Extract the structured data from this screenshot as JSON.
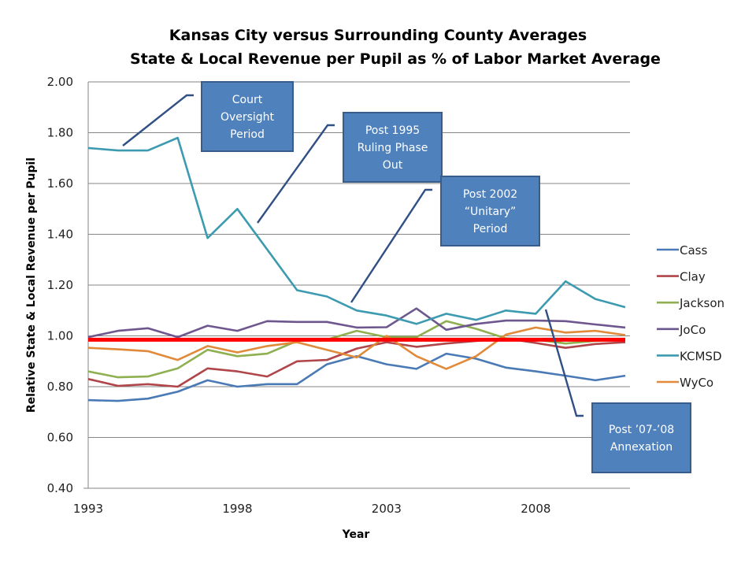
{
  "chart_data": {
    "type": "line",
    "title": "Kansas City versus Surrounding County Averages",
    "subtitle": "State & Local Revenue per Pupil as % of Labor Market Average",
    "xlabel": "Year",
    "ylabel": "Relative State & Local Revenue per Pupil",
    "ylim": [
      0.4,
      2.0
    ],
    "yticks": [
      "0.40",
      "0.60",
      "0.80",
      "1.00",
      "1.20",
      "1.40",
      "1.60",
      "1.80",
      "2.00"
    ],
    "ytick_values": [
      0.4,
      0.6,
      0.8,
      1.0,
      1.2,
      1.4,
      1.6,
      1.8,
      2.0
    ],
    "xticks": [
      "1993",
      "1998",
      "2003",
      "2008"
    ],
    "xtick_values": [
      1993,
      1998,
      2003,
      2008
    ],
    "xlim": [
      1993,
      2011
    ],
    "grid": "horizontal",
    "legend_position": "right",
    "x": [
      1993,
      1994,
      1995,
      1996,
      1997,
      1998,
      1999,
      2000,
      2001,
      2002,
      2003,
      2004,
      2005,
      2006,
      2007,
      2008,
      2009,
      2010,
      2011
    ],
    "series": [
      {
        "name": "Cass",
        "color": "#4a7ab5",
        "values": [
          0.747,
          0.744,
          0.753,
          0.78,
          0.825,
          0.8,
          0.81,
          0.81,
          0.888,
          0.92,
          0.888,
          0.87,
          0.93,
          0.91,
          0.875,
          0.86,
          0.843,
          0.825,
          0.843
        ]
      },
      {
        "name": "Clay",
        "color": "#b0464a",
        "values": [
          0.83,
          0.803,
          0.81,
          0.8,
          0.872,
          0.86,
          0.84,
          0.9,
          0.905,
          0.95,
          0.975,
          0.957,
          0.97,
          0.98,
          0.99,
          0.972,
          0.953,
          0.968,
          0.975
        ]
      },
      {
        "name": "Jackson",
        "color": "#8fb050",
        "values": [
          0.86,
          0.837,
          0.84,
          0.872,
          0.945,
          0.92,
          0.93,
          0.98,
          0.985,
          1.02,
          0.995,
          0.995,
          1.058,
          1.028,
          0.99,
          0.985,
          0.97,
          0.98,
          0.985
        ]
      },
      {
        "name": "JoCo",
        "color": "#6e578e",
        "values": [
          0.995,
          1.02,
          1.03,
          0.995,
          1.04,
          1.02,
          1.058,
          1.055,
          1.055,
          1.033,
          1.034,
          1.108,
          1.024,
          1.047,
          1.06,
          1.06,
          1.058,
          1.045,
          1.033
        ]
      },
      {
        "name": "KCMSD",
        "color": "#3c9bb0",
        "values": [
          1.74,
          1.73,
          1.73,
          1.78,
          1.385,
          1.5,
          1.34,
          1.18,
          1.155,
          1.1,
          1.08,
          1.047,
          1.087,
          1.063,
          1.1,
          1.087,
          1.215,
          1.145,
          1.113
        ]
      },
      {
        "name": "WyCo",
        "color": "#e08a3a",
        "values": [
          0.953,
          0.947,
          0.94,
          0.905,
          0.96,
          0.935,
          0.96,
          0.975,
          0.945,
          0.915,
          1.0,
          0.92,
          0.87,
          0.92,
          1.005,
          1.033,
          1.013,
          1.02,
          1.003
        ]
      }
    ],
    "reference_line": {
      "value": 0.985,
      "color": "#ff0000"
    },
    "annotations": [
      {
        "text": [
          "Court",
          "Oversight",
          "Period"
        ]
      },
      {
        "text": [
          "Post 1995",
          "Ruling Phase",
          "Out"
        ]
      },
      {
        "text": [
          "Post 2002",
          "“Unitary”",
          "Period"
        ]
      },
      {
        "text": [
          "Post ’07-’08",
          "Annexation"
        ]
      }
    ],
    "annotation_box_color": "#4f81bd",
    "annotation_border_color": "#385d8a",
    "leader_color": "#2f4f85"
  }
}
